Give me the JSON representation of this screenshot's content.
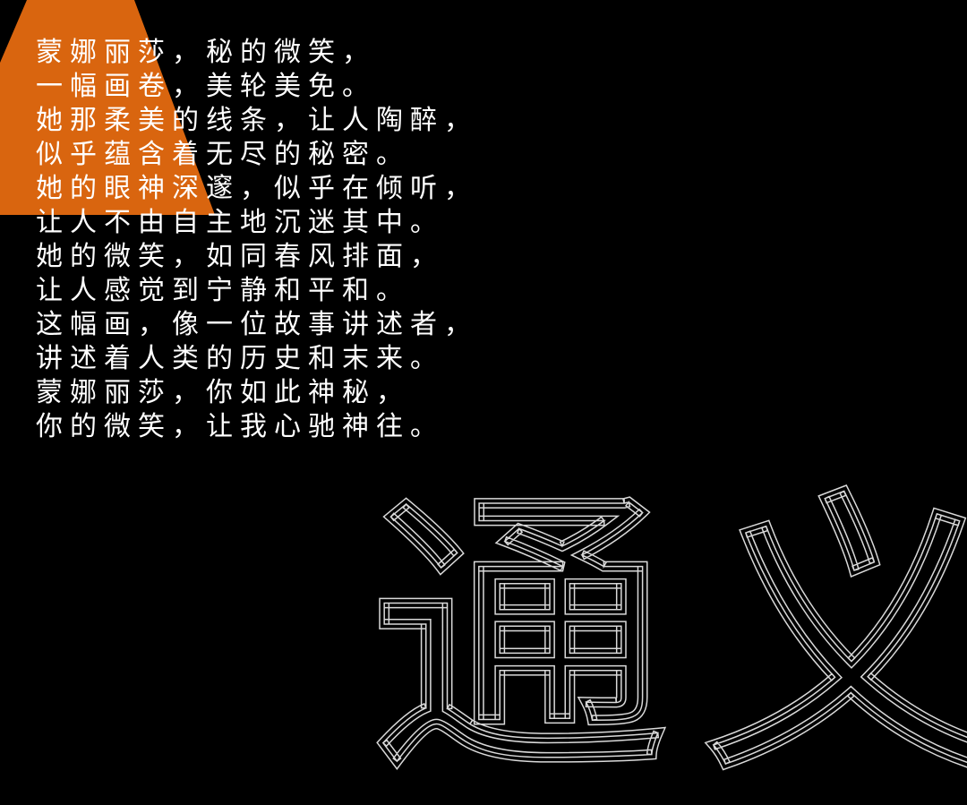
{
  "colors": {
    "background": "#000000",
    "accent": "#d9650f",
    "text": "#ffffff",
    "outline": "#d9d9d9"
  },
  "poem": {
    "lines": [
      "蒙娜丽莎，秘的微笑，",
      "一幅画卷，美轮美免。",
      "她那柔美的线条，让人陶醉，",
      "似乎蕴含着无尽的秘密。",
      "她的眼神深邃，似乎在倾听，",
      "让人不由自主地沉迷其中。",
      "她的微笑，如同春风排面，",
      "让人感觉到宁静和平和。",
      "这幅画，像一位故事讲述者，",
      "讲述着人类的历史和末来。",
      "蒙娜丽莎，你如此神秘，",
      "你的微笑，让我心驰神往。"
    ]
  },
  "watermark": {
    "char_1": "通",
    "char_2": "义"
  }
}
